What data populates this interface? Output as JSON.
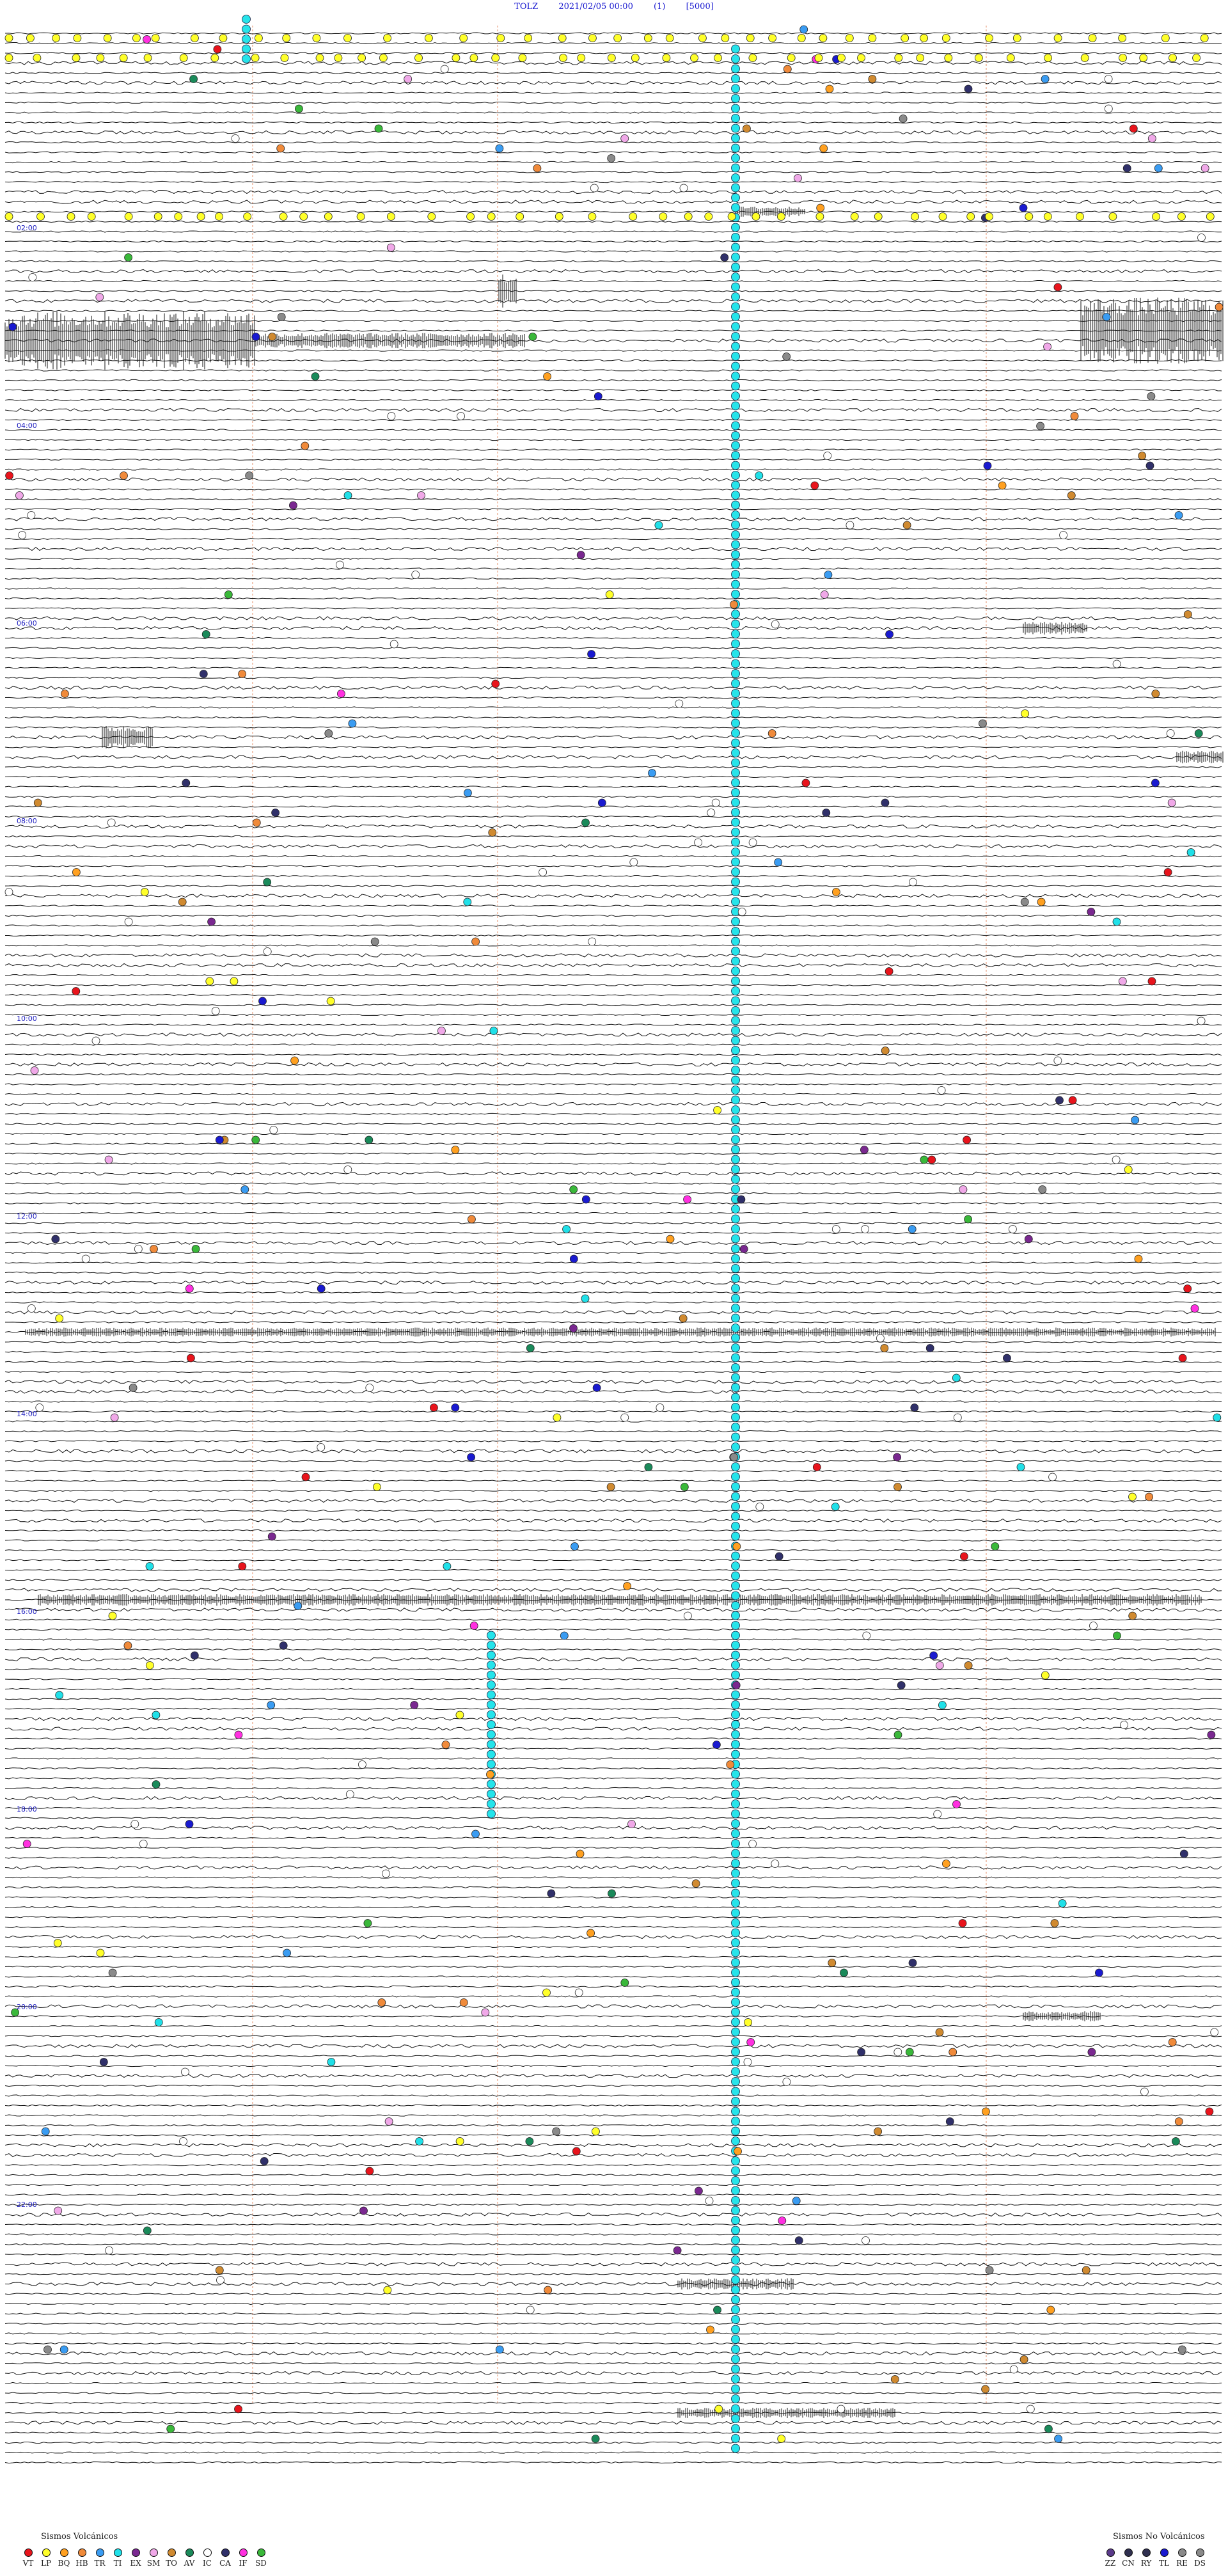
{
  "header": {
    "station": "TOLZ",
    "datetime": "2021/02/05 00:00",
    "component": "(1)",
    "scale": "[5000]"
  },
  "chart_data": {
    "type": "seismogram-helicorder",
    "hours": [
      "02:00",
      "04:00",
      "06:00",
      "08:00",
      "10:00",
      "12:00",
      "14:00",
      "16:00",
      "18:00",
      "20:00",
      "22:00"
    ],
    "legend_volcanic": {
      "title": "Sismos Volcánicos",
      "items": [
        {
          "code": "VT",
          "color": "#e8141c"
        },
        {
          "code": "LP",
          "color": "#ffff2a"
        },
        {
          "code": "BQ",
          "color": "#ffa020"
        },
        {
          "code": "HB",
          "color": "#f08a3a"
        },
        {
          "code": "TR",
          "color": "#3a9cf2"
        },
        {
          "code": "TI",
          "color": "#20e0e8"
        },
        {
          "code": "EX",
          "color": "#7a2890"
        },
        {
          "code": "SM",
          "color": "#f0a8e8"
        },
        {
          "code": "TO",
          "color": "#d08a30"
        },
        {
          "code": "AV",
          "color": "#1a8a5a"
        },
        {
          "code": "IC",
          "color": "#ffffff"
        },
        {
          "code": "CA",
          "color": "#30306a"
        },
        {
          "code": "IF",
          "color": "#ff30e0"
        },
        {
          "code": "SD",
          "color": "#3ab83a"
        }
      ]
    },
    "legend_nonvolcanic": {
      "title": "Sismos No Volcánicos",
      "items": [
        {
          "code": "ZZ",
          "color": "#5a3a8a"
        },
        {
          "code": "CN",
          "color": "#303050"
        },
        {
          "code": "RY",
          "color": "#303050"
        },
        {
          "code": "TL",
          "color": "#1a1ad0"
        },
        {
          "code": "RE",
          "color": "#8a8a8a"
        },
        {
          "code": "DS",
          "color": "#8a8a8a"
        }
      ]
    }
  }
}
